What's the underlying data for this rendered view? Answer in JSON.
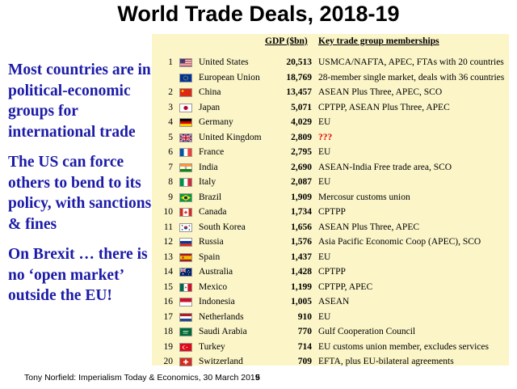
{
  "slide": {
    "title": "World Trade Deals, 2018-19",
    "bullets": [
      "Most countries are in political-economic groups for international trade",
      "The US can force others to bend to its policy, with sanctions & fines",
      "On Brexit … there is no ‘open market’ outside the EU!"
    ],
    "footer": "Tony Norfield: Imperialism Today & Economics, 30 March 2019",
    "page_number": "5"
  },
  "table": {
    "headers": {
      "gdp": "GDP ($bn)",
      "groups": "Key trade group memberships"
    },
    "rows": [
      {
        "rank": "1",
        "flag": "us-flag-icon",
        "country": "United States",
        "gdp": "20,513",
        "groups": "USMCA/NAFTA, APEC, FTAs with 20 countries"
      },
      {
        "rank": "",
        "flag": "eu-flag-icon",
        "country": "European Union",
        "gdp": "18,769",
        "groups": "28-member single market, deals with 36 countries"
      },
      {
        "rank": "2",
        "flag": "china-flag-icon",
        "country": "China",
        "gdp": "13,457",
        "groups": "ASEAN Plus Three, APEC, SCO"
      },
      {
        "rank": "3",
        "flag": "japan-flag-icon",
        "country": "Japan",
        "gdp": "5,071",
        "groups": "CPTPP, ASEAN Plus Three, APEC"
      },
      {
        "rank": "4",
        "flag": "germany-flag-icon",
        "country": "Germany",
        "gdp": "4,029",
        "groups": "EU"
      },
      {
        "rank": "5",
        "flag": "uk-flag-icon",
        "country": "United Kingdom",
        "gdp": "2,809",
        "groups": "???"
      },
      {
        "rank": "6",
        "flag": "france-flag-icon",
        "country": "France",
        "gdp": "2,795",
        "groups": "EU"
      },
      {
        "rank": "7",
        "flag": "india-flag-icon",
        "country": "India",
        "gdp": "2,690",
        "groups": "ASEAN-India Free trade area, SCO"
      },
      {
        "rank": "8",
        "flag": "italy-flag-icon",
        "country": "Italy",
        "gdp": "2,087",
        "groups": "EU"
      },
      {
        "rank": "9",
        "flag": "brazil-flag-icon",
        "country": "Brazil",
        "gdp": "1,909",
        "groups": "Mercosur customs union"
      },
      {
        "rank": "10",
        "flag": "canada-flag-icon",
        "country": "Canada",
        "gdp": "1,734",
        "groups": "CPTPP"
      },
      {
        "rank": "11",
        "flag": "south-korea-flag-icon",
        "country": "South Korea",
        "gdp": "1,656",
        "groups": "ASEAN Plus Three, APEC"
      },
      {
        "rank": "12",
        "flag": "russia-flag-icon",
        "country": "Russia",
        "gdp": "1,576",
        "groups": "Asia Pacific Economic Coop (APEC), SCO"
      },
      {
        "rank": "13",
        "flag": "spain-flag-icon",
        "country": "Spain",
        "gdp": "1,437",
        "groups": "EU"
      },
      {
        "rank": "14",
        "flag": "australia-flag-icon",
        "country": "Australia",
        "gdp": "1,428",
        "groups": "CPTPP"
      },
      {
        "rank": "15",
        "flag": "mexico-flag-icon",
        "country": "Mexico",
        "gdp": "1,199",
        "groups": "CPTPP, APEC"
      },
      {
        "rank": "16",
        "flag": "indonesia-flag-icon",
        "country": "Indonesia",
        "gdp": "1,005",
        "groups": "ASEAN"
      },
      {
        "rank": "17",
        "flag": "netherlands-flag-icon",
        "country": "Netherlands",
        "gdp": "910",
        "groups": "EU"
      },
      {
        "rank": "18",
        "flag": "saudi-arabia-flag-icon",
        "country": "Saudi Arabia",
        "gdp": "770",
        "groups": "Gulf Cooperation Council"
      },
      {
        "rank": "19",
        "flag": "turkey-flag-icon",
        "country": "Turkey",
        "gdp": "714",
        "groups": "EU customs union member, excludes services"
      },
      {
        "rank": "20",
        "flag": "switzerland-flag-icon",
        "country": "Switzerland",
        "gdp": "709",
        "groups": "EFTA, plus EU-bilateral agreements"
      }
    ]
  },
  "colors": {
    "bullet_text": "#1b1ba8",
    "panel_background": "#fbf5c8",
    "alert": "#e00000"
  }
}
